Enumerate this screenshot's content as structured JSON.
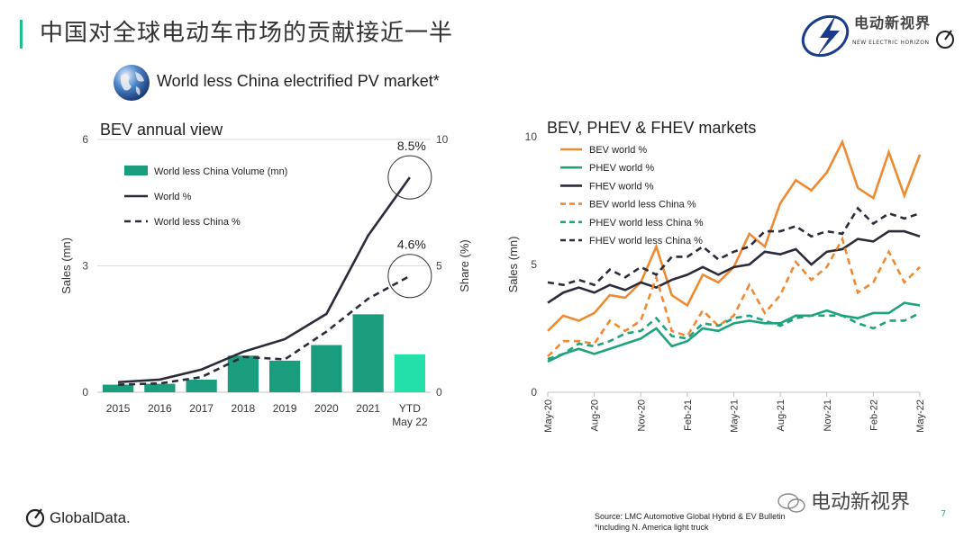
{
  "page": {
    "title": "中国对全球电动车市场的贡献接近一半",
    "subtitle": "World less China electrified PV market*",
    "logo_cn": "电动新视界",
    "logo_en": "NEW ELECTRIC HORIZON",
    "brand": "GlobalData.",
    "source_line1": "Source: LMC Automotive Global Hybrid & EV Bulletin",
    "source_line2": "*including N. America light truck",
    "watermark": "电动新视界",
    "page_number": "7",
    "colors": {
      "accent": "#1fbf8f",
      "bar": "#1a9d7c",
      "bar_ytd": "#22e0a8",
      "orange": "#f08a32",
      "green": "#1fa37e",
      "dark": "#2b2b3a"
    }
  },
  "chart_data": [
    {
      "type": "bar",
      "title": "BEV annual view",
      "categories": [
        "2015",
        "2016",
        "2017",
        "2018",
        "2019",
        "2020",
        "2021",
        "YTD May 22"
      ],
      "category_labels": [
        [
          "2015"
        ],
        [
          "2016"
        ],
        [
          "2017"
        ],
        [
          "2018"
        ],
        [
          "2019"
        ],
        [
          "2020"
        ],
        [
          "2021"
        ],
        [
          "YTD",
          "May 22"
        ]
      ],
      "ylabel": "Sales (mn)",
      "y2label": "Share (%)",
      "ylim": [
        0,
        6
      ],
      "yticks": [
        0,
        3,
        6
      ],
      "y2lim": [
        0,
        10
      ],
      "y2ticks": [
        0,
        5,
        10
      ],
      "series": [
        {
          "name": "World less China Volume (mn)",
          "kind": "bar",
          "axis": "left",
          "values": [
            0.18,
            0.2,
            0.3,
            0.87,
            0.75,
            1.12,
            1.85,
            0.9
          ]
        },
        {
          "name": "World %",
          "kind": "line",
          "axis": "right",
          "values": [
            0.4,
            0.5,
            0.9,
            1.6,
            2.1,
            3.1,
            6.2,
            8.5
          ]
        },
        {
          "name": "World less China %",
          "kind": "line",
          "dashed": true,
          "axis": "right",
          "values": [
            0.3,
            0.35,
            0.6,
            1.4,
            1.3,
            2.4,
            3.7,
            4.6
          ]
        }
      ],
      "annotations": [
        "8.5%",
        "4.6%"
      ],
      "legend_position": "top-left"
    },
    {
      "type": "line",
      "title": "BEV, PHEV & FHEV markets",
      "ylabel": "Sales (mn)",
      "ylim": [
        0,
        10
      ],
      "yticks": [
        0,
        5,
        10
      ],
      "x": [
        "May-20",
        "Jun-20",
        "Jul-20",
        "Aug-20",
        "Sep-20",
        "Oct-20",
        "Nov-20",
        "Dec-20",
        "Jan-21",
        "Feb-21",
        "Mar-21",
        "Apr-21",
        "May-21",
        "Jun-21",
        "Jul-21",
        "Aug-21",
        "Sep-21",
        "Oct-21",
        "Nov-21",
        "Dec-21",
        "Jan-22",
        "Feb-22",
        "Mar-22",
        "Apr-22",
        "May-22"
      ],
      "xtick_labels": [
        "May-20",
        "Aug-20",
        "Nov-20",
        "Feb-21",
        "May-21",
        "Aug-21",
        "Nov-21",
        "Feb-22",
        "May-22"
      ],
      "series": [
        {
          "name": "BEV world %",
          "color": "#f08a32",
          "dashed": false,
          "values": [
            2.4,
            3.0,
            2.8,
            3.1,
            3.8,
            3.7,
            4.3,
            5.7,
            3.8,
            3.4,
            4.6,
            4.3,
            4.9,
            6.2,
            5.7,
            7.4,
            8.3,
            7.9,
            8.6,
            9.8,
            8.0,
            7.6,
            9.4,
            7.7,
            9.3
          ]
        },
        {
          "name": "PHEV world %",
          "color": "#1fa37e",
          "dashed": false,
          "values": [
            1.2,
            1.5,
            1.7,
            1.5,
            1.7,
            1.9,
            2.1,
            2.5,
            1.8,
            2.0,
            2.5,
            2.4,
            2.7,
            2.8,
            2.7,
            2.7,
            3.0,
            3.0,
            3.2,
            3.0,
            2.9,
            3.1,
            3.1,
            3.5,
            3.4
          ]
        },
        {
          "name": "FHEV world %",
          "color": "#2b2b3a",
          "dashed": false,
          "values": [
            3.5,
            3.9,
            4.1,
            3.9,
            4.2,
            4.0,
            4.3,
            4.1,
            4.4,
            4.6,
            4.9,
            4.6,
            4.9,
            5.0,
            5.5,
            5.4,
            5.6,
            5.0,
            5.5,
            5.6,
            6.0,
            5.9,
            6.3,
            6.3,
            6.1
          ]
        },
        {
          "name": "BEV world less China %",
          "color": "#f08a32",
          "dashed": true,
          "values": [
            1.4,
            2.0,
            2.0,
            1.9,
            2.8,
            2.4,
            2.8,
            4.5,
            2.4,
            2.2,
            3.2,
            2.6,
            3.0,
            4.2,
            3.1,
            3.8,
            5.1,
            4.4,
            4.9,
            6.0,
            3.9,
            4.3,
            5.5,
            4.3,
            4.9
          ]
        },
        {
          "name": "PHEV world less China %",
          "color": "#1fa37e",
          "dashed": true,
          "values": [
            1.3,
            1.5,
            1.9,
            1.8,
            2.0,
            2.3,
            2.4,
            2.9,
            2.2,
            2.1,
            2.7,
            2.6,
            2.9,
            3.0,
            2.8,
            2.6,
            2.9,
            3.0,
            3.0,
            3.0,
            2.7,
            2.5,
            2.8,
            2.8,
            3.1
          ]
        },
        {
          "name": "FHEV world less China %",
          "color": "#2b2b3a",
          "dashed": true,
          "values": [
            4.3,
            4.2,
            4.4,
            4.2,
            4.8,
            4.5,
            4.9,
            4.6,
            5.3,
            5.3,
            5.7,
            5.2,
            5.5,
            5.7,
            6.3,
            6.3,
            6.5,
            6.1,
            6.3,
            6.2,
            7.2,
            6.6,
            7.0,
            6.8,
            7.0
          ]
        }
      ],
      "legend_position": "top-left"
    }
  ]
}
